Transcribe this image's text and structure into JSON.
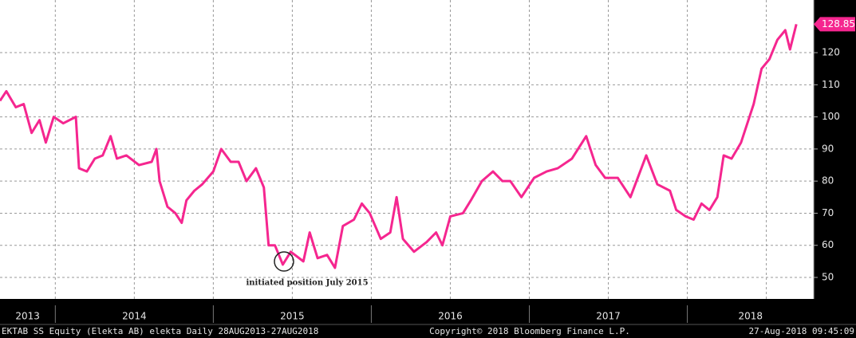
{
  "chart_data": {
    "type": "line",
    "series": [
      {
        "name": "EKTAB SS Equity",
        "color": "#f5268f",
        "x": [
          2013.65,
          2013.69,
          2013.75,
          2013.8,
          2013.85,
          2013.9,
          2013.94,
          2013.99,
          2014.05,
          2014.13,
          2014.15,
          2014.2,
          2014.25,
          2014.3,
          2014.35,
          2014.39,
          2014.45,
          2014.53,
          2014.61,
          2014.64,
          2014.66,
          2014.71,
          2014.76,
          2014.8,
          2014.83,
          2014.88,
          2014.93,
          2015.0,
          2015.05,
          2015.11,
          2015.16,
          2015.21,
          2015.27,
          2015.32,
          2015.35,
          2015.39,
          2015.44,
          2015.49,
          2015.57,
          2015.61,
          2015.66,
          2015.72,
          2015.77,
          2015.82,
          2015.89,
          2015.94,
          2015.99,
          2016.06,
          2016.12,
          2016.16,
          2016.2,
          2016.27,
          2016.35,
          2016.41,
          2016.45,
          2016.5,
          2016.58,
          2016.63,
          2016.7,
          2016.77,
          2016.83,
          2016.88,
          2016.95,
          2017.03,
          2017.11,
          2017.18,
          2017.27,
          2017.36,
          2017.42,
          2017.48,
          2017.56,
          2017.64,
          2017.74,
          2017.81,
          2017.89,
          2017.93,
          2017.99,
          2018.04,
          2018.09,
          2018.14,
          2018.19,
          2018.23,
          2018.28,
          2018.34,
          2018.42,
          2018.47,
          2018.52,
          2018.57,
          2018.62,
          2018.65,
          2018.69
        ],
        "values": [
          105,
          108,
          103,
          104,
          95,
          99,
          92,
          100,
          98,
          100,
          84,
          83,
          87,
          88,
          94,
          87,
          88,
          85,
          86,
          90,
          80,
          72,
          70,
          67,
          74,
          77,
          79,
          83,
          90,
          86,
          86,
          80,
          84,
          78,
          60,
          60,
          54,
          58,
          55,
          64,
          56,
          57,
          53,
          66,
          68,
          73,
          70,
          62,
          64,
          75,
          62,
          58,
          61,
          64,
          60,
          69,
          70,
          74,
          80,
          83,
          80,
          80,
          75,
          81,
          83,
          84,
          87,
          94,
          85,
          81,
          81,
          75,
          88,
          79,
          77,
          71,
          69,
          68,
          73,
          71,
          75,
          88,
          87,
          92,
          104,
          115,
          118,
          124,
          127,
          121,
          128.85
        ]
      }
    ],
    "last_value": 128.85,
    "xlim": [
      2013.65,
      2018.8
    ],
    "xticks": [
      2014,
      2015,
      2016,
      2017,
      2018
    ],
    "xgrid": [
      2014,
      2014.5,
      2015,
      2015.5,
      2016,
      2016.5,
      2017,
      2017.5,
      2018,
      2018.5
    ],
    "year_labels": [
      "2013",
      "2014",
      "2015",
      "2016",
      "2017",
      "2018"
    ],
    "ylim": [
      43.3,
      136.4
    ],
    "yticks": [
      50,
      60,
      70,
      80,
      90,
      100,
      110,
      120
    ],
    "grid": true,
    "annotation": "initiated position July 2015",
    "footer": {
      "left": "EKTAB SS Equity (Elekta AB) elekta  Daily 28AUG2013-27AUG2018",
      "center": "Copyright© 2018 Bloomberg Finance L.P.",
      "right": "27-Aug-2018 09:45:09"
    }
  }
}
